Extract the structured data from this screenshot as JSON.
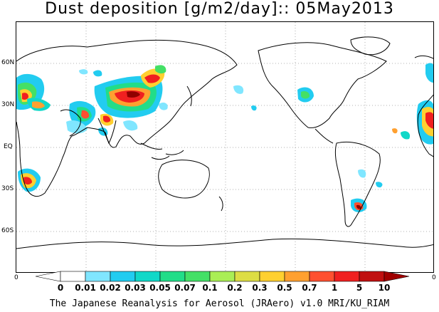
{
  "title": "Dust deposition [g/m2/day]:: 05May2013",
  "lat_labels": [
    "60N",
    "30N",
    "EQ",
    "30S",
    "60S"
  ],
  "edge_left": "0",
  "edge_right": "0",
  "colorbar": {
    "labels": [
      "0",
      "0.01",
      "0.02",
      "0.03",
      "0.05",
      "0.07",
      "0.1",
      "0.2",
      "0.3",
      "0.5",
      "0.7",
      "1",
      "5",
      "10"
    ],
    "colors": [
      "#ffffff",
      "#80e6ff",
      "#22ccf0",
      "#10d8c8",
      "#22dd88",
      "#44e066",
      "#aaee55",
      "#dddd44",
      "#ffd030",
      "#ffa030",
      "#ff5030",
      "#f02020",
      "#c01010",
      "#900000",
      "#a00000"
    ]
  },
  "footer": "The Japanese Reanalysis for Aerosol (JRAero) v1.0 MRI/KU_RIAM"
}
